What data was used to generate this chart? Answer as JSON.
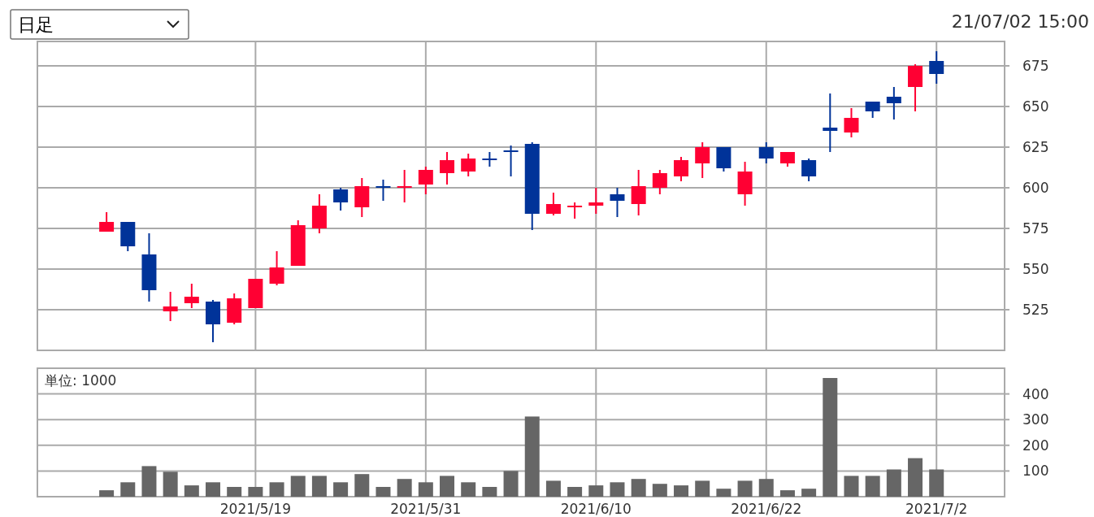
{
  "chart_data": [
    {
      "type": "candlestick",
      "annotations": [
        "日足",
        "21/07/02 15:00"
      ],
      "categories": [
        null,
        null,
        null,
        null,
        null,
        null,
        null,
        "2021/5/19",
        null,
        null,
        null,
        null,
        null,
        null,
        null,
        "2021/5/31",
        null,
        null,
        null,
        null,
        null,
        null,
        null,
        "2021/6/10",
        null,
        null,
        null,
        null,
        null,
        null,
        null,
        "2021/6/22",
        null,
        null,
        null,
        null,
        null,
        null,
        null,
        "2021/7/2"
      ],
      "ohlc": [
        [
          573,
          585,
          573,
          579
        ],
        [
          579,
          579,
          561,
          564
        ],
        [
          559,
          572,
          530,
          537
        ],
        [
          524,
          536,
          518,
          527
        ],
        [
          529,
          541,
          526,
          533
        ],
        [
          530,
          531,
          505,
          516
        ],
        [
          517,
          535,
          516,
          532
        ],
        [
          526,
          544,
          526,
          544
        ],
        [
          541,
          561,
          540,
          551
        ],
        [
          552,
          580,
          552,
          577
        ],
        [
          575,
          596,
          572,
          589
        ],
        [
          599,
          600,
          586,
          591
        ],
        [
          588,
          606,
          582,
          601
        ],
        [
          601,
          605,
          592,
          600
        ],
        [
          600,
          611,
          591,
          601
        ],
        [
          602,
          613,
          596,
          611
        ],
        [
          609,
          622,
          602,
          617
        ],
        [
          610,
          621,
          607,
          618
        ],
        [
          618,
          622,
          613,
          617
        ],
        [
          623,
          626,
          607,
          622
        ],
        [
          627,
          628,
          574,
          584
        ],
        [
          584,
          597,
          583,
          590
        ],
        [
          588,
          591,
          581,
          589
        ],
        [
          589,
          600,
          584,
          591
        ],
        [
          596,
          600,
          582,
          592
        ],
        [
          590,
          611,
          583,
          601
        ],
        [
          600,
          611,
          596,
          609
        ],
        [
          607,
          619,
          604,
          617
        ],
        [
          615,
          628,
          606,
          625
        ],
        [
          625,
          625,
          610,
          612
        ],
        [
          596,
          616,
          589,
          610
        ],
        [
          625,
          628,
          615,
          618
        ],
        [
          615,
          622,
          613,
          622
        ],
        [
          617,
          618,
          604,
          607
        ],
        [
          637,
          658,
          622,
          635
        ],
        [
          634,
          649,
          631,
          643
        ],
        [
          653,
          653,
          643,
          647
        ],
        [
          656,
          662,
          642,
          652
        ],
        [
          662,
          676,
          647,
          675
        ],
        [
          678,
          684,
          664,
          670
        ]
      ],
      "colors": [
        "#ff0033",
        "#003399",
        "#003399",
        "#ff0033",
        "#ff0033",
        "#003399",
        "#ff0033",
        "#ff0033",
        "#ff0033",
        "#ff0033",
        "#ff0033",
        "#003399",
        "#ff0033",
        "#003399",
        "#ff0033",
        "#ff0033",
        "#ff0033",
        "#ff0033",
        "#003399",
        "#003399",
        "#003399",
        "#ff0033",
        "#ff0033",
        "#ff0033",
        "#003399",
        "#ff0033",
        "#ff0033",
        "#ff0033",
        "#ff0033",
        "#003399",
        "#ff0033",
        "#003399",
        "#ff0033",
        "#003399",
        "#003399",
        "#ff0033",
        "#003399",
        "#003399",
        "#ff0033",
        "#003399"
      ],
      "ylim": [
        500,
        690
      ],
      "yticks": [
        525,
        550,
        575,
        600,
        625,
        650,
        675
      ],
      "grid": true,
      "tick_labels": "y"
    },
    {
      "type": "bar",
      "annotations": [
        "単位: 1000"
      ],
      "categories": [
        null,
        null,
        null,
        null,
        null,
        null,
        null,
        "2021/5/19",
        null,
        null,
        null,
        null,
        null,
        null,
        null,
        "2021/5/31",
        null,
        null,
        null,
        null,
        null,
        null,
        null,
        "2021/6/10",
        null,
        null,
        null,
        null,
        null,
        null,
        null,
        "2021/6/22",
        null,
        null,
        null,
        null,
        null,
        null,
        null,
        "2021/7/2"
      ],
      "values": [
        25,
        56,
        119,
        97,
        44,
        56,
        38,
        38,
        56,
        81,
        81,
        56,
        88,
        38,
        69,
        56,
        81,
        56,
        38,
        100,
        312,
        62,
        38,
        44,
        56,
        69,
        50,
        44,
        62,
        31,
        62,
        69,
        25,
        31,
        462,
        81,
        81,
        106,
        150,
        106
      ],
      "color": "#666666",
      "ylim": [
        0,
        500
      ],
      "yticks": [
        100,
        200,
        300,
        400
      ],
      "grid": true
    }
  ]
}
